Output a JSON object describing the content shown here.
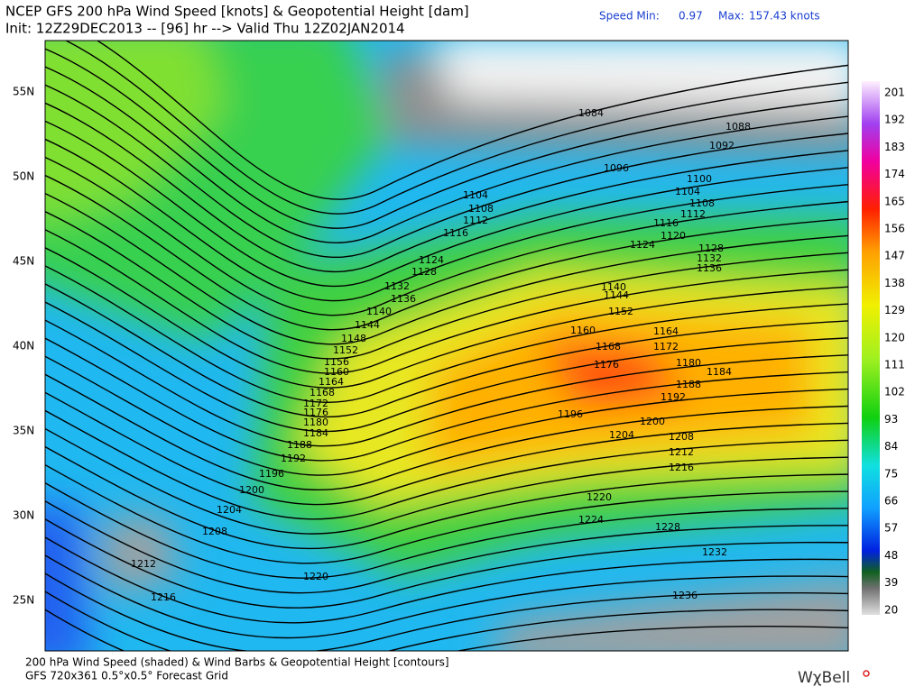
{
  "header": {
    "title": "NCEP GFS 200 hPa Wind Speed [knots] & Geopotential Height [dam]",
    "speed_min_label": "Speed Min:",
    "speed_min": "0.97",
    "speed_max_label": "Max:",
    "speed_max": "157.43 knots",
    "init": "Init: 12Z29DEC2013 -- [96] hr --> Valid Thu 12Z02JAN2014"
  },
  "map": {
    "lat_labels": [
      "55N",
      "50N",
      "45N",
      "40N",
      "35N",
      "30N",
      "25N"
    ],
    "contour_labels": [
      "1084",
      "1088",
      "1092",
      "1096",
      "1100",
      "1104",
      "1104",
      "1108",
      "1108",
      "1112",
      "1112",
      "1116",
      "1116",
      "1120",
      "1124",
      "1124",
      "1128",
      "1128",
      "1132",
      "1132",
      "1136",
      "1136",
      "1140",
      "1140",
      "1144",
      "1144",
      "1148",
      "1152",
      "1152",
      "1156",
      "1160",
      "1160",
      "1164",
      "1164",
      "1168",
      "1168",
      "1172",
      "1172",
      "1176",
      "1176",
      "1180",
      "1180",
      "1184",
      "1184",
      "1188",
      "1188",
      "1192",
      "1192",
      "1196",
      "1196",
      "1200",
      "1200",
      "1204",
      "1204",
      "1208",
      "1208",
      "1212",
      "1212",
      "1216",
      "1216",
      "1220",
      "1220",
      "1224",
      "1228",
      "1232",
      "1236"
    ]
  },
  "colorbar": {
    "ticks": [
      "201",
      "192",
      "183",
      "174",
      "165",
      "156",
      "147",
      "138",
      "129",
      "120",
      "111",
      "102",
      "93",
      "84",
      "75",
      "66",
      "57",
      "48",
      "39",
      "20"
    ]
  },
  "footer": {
    "line1": "200 hPa Wind Speed (shaded) & Wind Barbs & Geopotential Height [contours]",
    "line2": "GFS 720x361 0.5°x0.5° Forecast Grid",
    "logo": "WχBell"
  }
}
